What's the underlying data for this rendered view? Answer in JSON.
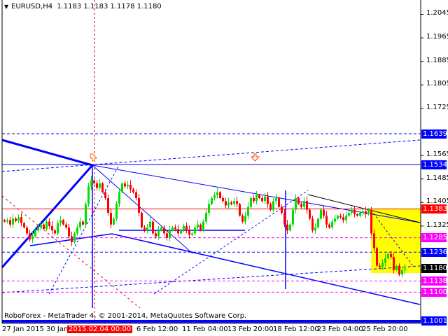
{
  "header": {
    "symbol": "EURUSD,H4",
    "ohlc": "1.1183 1.1183 1.1178 1.1180"
  },
  "footer": {
    "copyright": "RoboForex - MetaTrader 4, © 2001-2014, MetaQuotes Software Corp."
  },
  "colors": {
    "bull": "#00e000",
    "bear": "#ff0000",
    "background": "#ffffff",
    "lines": "#0000ff",
    "resistance": "#ff0000",
    "target": "#ff00ff",
    "zone": "#ffff00"
  },
  "chart_data": {
    "type": "candlestick",
    "symbol": "EURUSD",
    "timeframe": "H4",
    "grid": false,
    "ylim": [
      1.099,
      1.209
    ],
    "y_ticks": [
      "1.2045",
      "1.1965",
      "1.1885",
      "1.1805",
      "1.1725",
      "1.1565",
      "1.1485",
      "1.1405",
      "1.1325"
    ],
    "x_ticks": [
      "27 Jan 2015",
      "30 Jan",
      "6 Feb 12:00",
      "11 Feb 04:00",
      "13 Feb 20:00",
      "18 Feb 12:00",
      "23 Feb 04:00",
      "25 Feb 20:00"
    ],
    "crosshair_time": "2015.02.04 00:00",
    "closes": [
      1.134,
      1.1345,
      1.133,
      1.135,
      1.1342,
      1.1355,
      1.1335,
      1.132,
      1.13,
      1.128,
      1.129,
      1.131,
      1.132,
      1.133,
      1.1315,
      1.134,
      1.1325,
      1.131,
      1.13,
      1.1335,
      1.1345,
      1.133,
      1.132,
      1.129,
      1.127,
      1.13,
      1.132,
      1.134,
      1.133,
      1.14,
      1.146,
      1.148,
      1.147,
      1.1455,
      1.147,
      1.144,
      1.142,
      1.137,
      1.133,
      1.135,
      1.14,
      1.144,
      1.147,
      1.146,
      1.1465,
      1.145,
      1.144,
      1.142,
      1.137,
      1.132,
      1.131,
      1.132,
      1.134,
      1.13,
      1.129,
      1.131,
      1.132,
      1.13,
      1.1285,
      1.131,
      1.132,
      1.1315,
      1.13,
      1.131,
      1.1325,
      1.131,
      1.1295,
      1.13,
      1.132,
      1.133,
      1.131,
      1.134,
      1.137,
      1.14,
      1.142,
      1.143,
      1.144,
      1.142,
      1.141,
      1.1395,
      1.1405,
      1.14,
      1.141,
      1.14,
      1.136,
      1.134,
      1.136,
      1.139,
      1.142,
      1.141,
      1.143,
      1.142,
      1.141,
      1.1425,
      1.14,
      1.138,
      1.141,
      1.142,
      1.139,
      1.137,
      1.133,
      1.131,
      1.133,
      1.138,
      1.142,
      1.14,
      1.139,
      1.141,
      1.138,
      1.135,
      1.131,
      1.132,
      1.135,
      1.138,
      1.136,
      1.133,
      1.132,
      1.134,
      1.135,
      1.136,
      1.1355,
      1.1345,
      1.136,
      1.137,
      1.138,
      1.1365,
      1.136,
      1.137,
      1.1375,
      1.1365,
      1.138,
      1.13,
      1.125,
      1.119,
      1.1185,
      1.12,
      1.1215,
      1.123,
      1.122,
      1.1175,
      1.119,
      1.116,
      1.1175,
      1.118
    ],
    "price_levels": [
      {
        "price": 1.1639,
        "label": "1.1639",
        "color": "#0000ff",
        "style": "dashed"
      },
      {
        "price": 1.1534,
        "label": "1.1534",
        "color": "#0000ff",
        "style": "solid"
      },
      {
        "price": 1.1383,
        "label": "1.1383",
        "color": "#ff0000",
        "style": "solid"
      },
      {
        "price": 1.1285,
        "label": "1.1285",
        "color": "#ff00ff",
        "style": "dashed"
      },
      {
        "price": 1.1236,
        "label": "1.1236",
        "color": "#0000ff",
        "style": "dashed"
      },
      {
        "price": 1.118,
        "label": "1.1180",
        "color": "#000000",
        "style": "current"
      },
      {
        "price": 1.1138,
        "label": "1.1138",
        "color": "#ff00ff",
        "style": "dashed"
      },
      {
        "price": 1.11,
        "label": "1.1100",
        "color": "#ff00ff",
        "style": "dashed"
      },
      {
        "price": 1.1001,
        "label": "1.1001",
        "color": "#0000ff",
        "style": "thick"
      }
    ],
    "target_zone": {
      "top": 1.1383,
      "bottom": 1.1165
    }
  }
}
